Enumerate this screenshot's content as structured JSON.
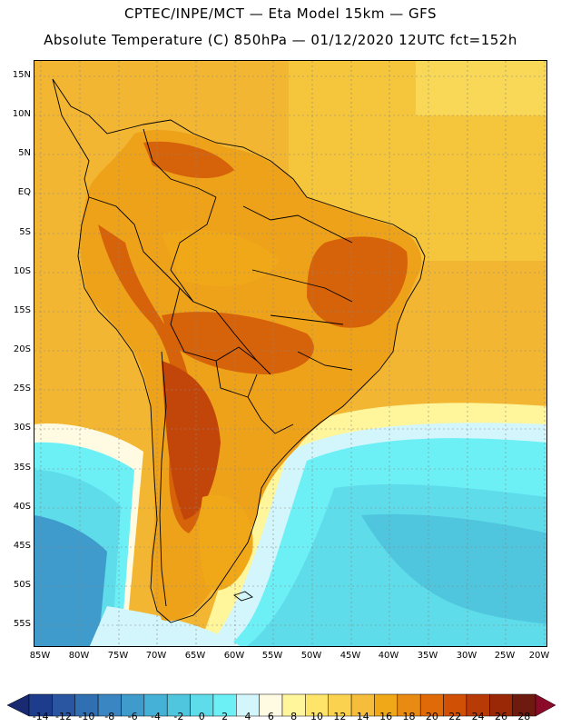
{
  "header": {
    "line1": "CPTEC/INPE/MCT —  Eta Model 15km — GFS",
    "line2": "Absolute Temperature (C) 850hPa — 01/12/2020 12UTC fct=152h"
  },
  "map": {
    "lat_labels": [
      "15N",
      "10N",
      "5N",
      "EQ",
      "5S",
      "10S",
      "15S",
      "20S",
      "25S",
      "30S",
      "35S",
      "40S",
      "45S",
      "50S",
      "55S"
    ],
    "lon_labels": [
      "85W",
      "80W",
      "75W",
      "70W",
      "65W",
      "60W",
      "55W",
      "50W",
      "45W",
      "40W",
      "35W",
      "30W",
      "25W",
      "20W"
    ]
  },
  "colorbar": {
    "labels": [
      "-14",
      "-12",
      "-10",
      "-8",
      "-6",
      "-4",
      "-2",
      "0",
      "2",
      "4",
      "6",
      "8",
      "10",
      "12",
      "14",
      "16",
      "18",
      "20",
      "22",
      "24",
      "26",
      "28"
    ],
    "colors": [
      "#1e3c8c",
      "#2a55a0",
      "#2f6fb2",
      "#3a86c2",
      "#3f9bcc",
      "#46b1d6",
      "#4fc6de",
      "#5fdcea",
      "#6cf0f6",
      "#d2f6fb",
      "#fffbe2",
      "#fff59a",
      "#ffe46a",
      "#fbd250",
      "#f6bd3c",
      "#f0a818",
      "#e98a12",
      "#e06a08",
      "#d05006",
      "#b83a06",
      "#9a2806",
      "#6f1a0e"
    ],
    "under_color": "#1a2a70",
    "over_color": "#8a0a28"
  },
  "palette": {
    "ocean_warm": "#f2b632",
    "ocean_north": "#f5c53c",
    "land_base": "#eea21a",
    "land_hot": "#d6630a",
    "land_hotter": "#c2450a",
    "cold_water": "#5fdcea",
    "cold_mid": "#4fc6de",
    "pale_cyan": "#d2f6fb",
    "pale_yellow": "#fff59a",
    "border": "#000000"
  }
}
